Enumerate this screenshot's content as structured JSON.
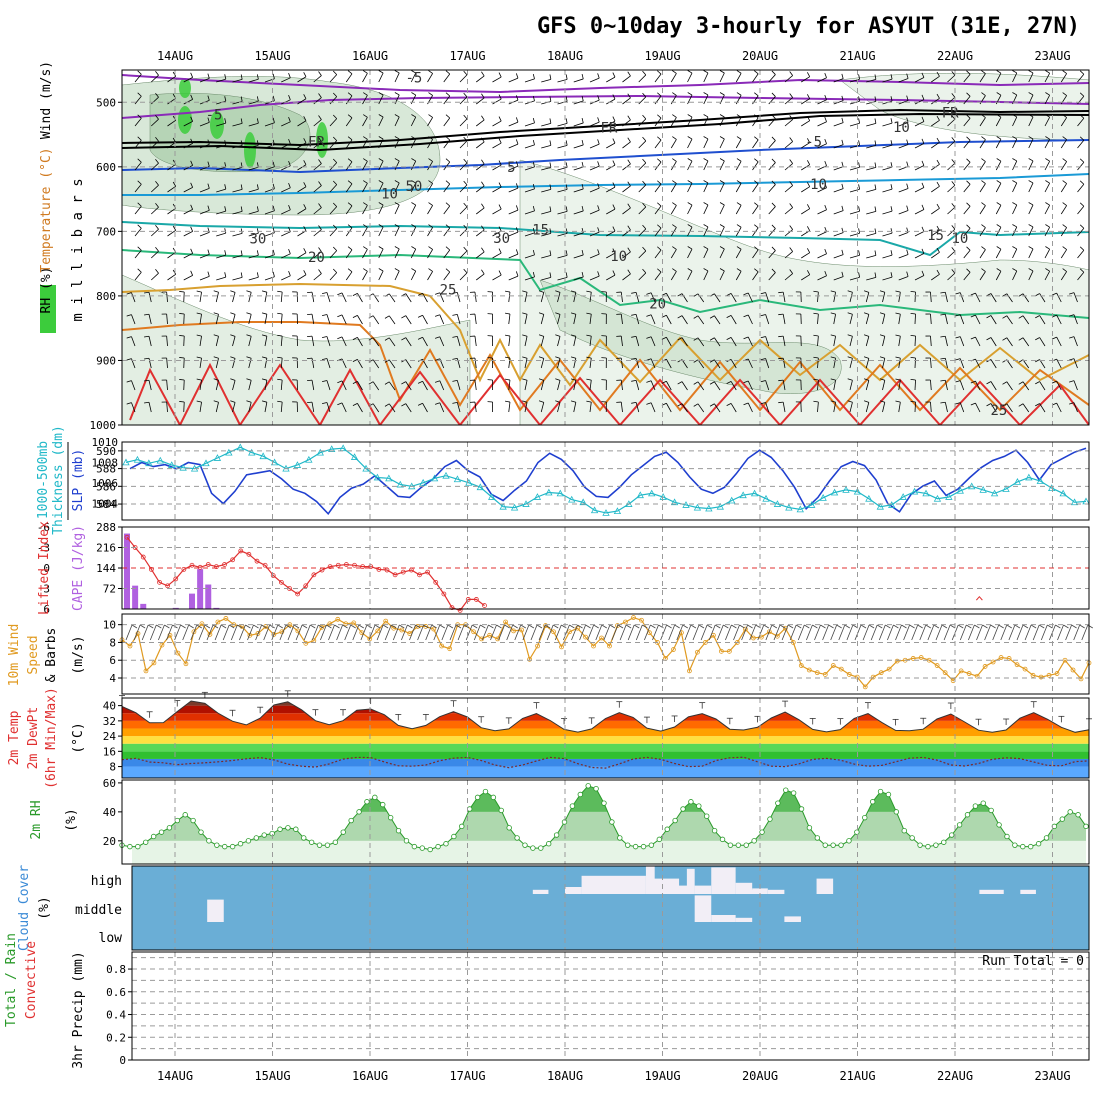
{
  "title": "GFS 0~10day 3-hourly for ASYUT (31E, 27N)",
  "dates": [
    "14AUG",
    "15AUG",
    "16AUG",
    "17AUG",
    "18AUG",
    "19AUG",
    "20AUG",
    "21AUG",
    "22AUG",
    "23AUG"
  ],
  "colors": {
    "frame": "#000000",
    "grid": "#9a9a9a",
    "rh_fill": "#8fbc8f",
    "rh_bright": "#3ccc3c",
    "slp": "#1f3fcf",
    "thick": "#20b8c8",
    "li": "#e03030",
    "cape": "#b060e0",
    "wind10": "#e09a20",
    "tmax_dark": "#6a4a3a",
    "rh2m": "#2a9a2a",
    "cloud_bg": "#6aaed6",
    "cloud_mark": "#f2eef6"
  },
  "chart_data": [
    {
      "panel": "upper-air",
      "type": "contour",
      "ylabel_parts": [
        "RH (%)",
        "Temperature (°C)",
        "Wind (m/s)",
        "m i l l i b a r s"
      ],
      "y_ticks": [
        500,
        600,
        700,
        800,
        900,
        1000
      ],
      "ylim": [
        1000,
        450
      ],
      "contour_labels": [
        {
          "text": "-5",
          "x": 2.45,
          "p": 462
        },
        {
          "text": "-5",
          "x": 0.4,
          "p": 519
        },
        {
          "text": "FR",
          "x": 1.45,
          "p": 561
        },
        {
          "text": "FR",
          "x": 4.45,
          "p": 539
        },
        {
          "text": "FR",
          "x": 7.95,
          "p": 516
        },
        {
          "text": "10",
          "x": 7.45,
          "p": 538
        },
        {
          "text": "-5",
          "x": 6.55,
          "p": 561
        },
        {
          "text": "5",
          "x": 3.45,
          "p": 600
        },
        {
          "text": "10",
          "x": 2.2,
          "p": 641
        },
        {
          "text": "10",
          "x": 6.6,
          "p": 627
        },
        {
          "text": "50",
          "x": 2.45,
          "p": 630
        },
        {
          "text": "15",
          "x": 3.75,
          "p": 697
        },
        {
          "text": "15",
          "x": 7.8,
          "p": 706
        },
        {
          "text": "30",
          "x": 0.85,
          "p": 711
        },
        {
          "text": "30",
          "x": 3.35,
          "p": 710
        },
        {
          "text": "10",
          "x": 8.05,
          "p": 710
        },
        {
          "text": "20",
          "x": 1.45,
          "p": 740
        },
        {
          "text": "10",
          "x": 4.55,
          "p": 738
        },
        {
          "text": "25",
          "x": 2.8,
          "p": 790
        },
        {
          "text": "20",
          "x": 4.95,
          "p": 812
        },
        {
          "text": "25",
          "x": 8.45,
          "p": 977
        }
      ]
    },
    {
      "panel": "thickness-slp",
      "type": "line",
      "ylabel": "1000-500mb Thickness (dm)",
      "ylabel_right": "SLP (mb)",
      "y_ticks": [
        584,
        586,
        588,
        590
      ],
      "y_ticks_right": [
        1004,
        1006,
        1008,
        1010
      ],
      "series": [
        {
          "name": "SLP (mb)",
          "values": [
            1007.4,
            1008.0,
            1007.6,
            1007.8,
            1007.4,
            1008.0,
            1007.8,
            1005.0,
            1004.0,
            1005.2,
            1006.8,
            1007.0,
            1007.2,
            1006.4,
            1005.4,
            1005.0,
            1004.2,
            1003.0,
            1004.6,
            1005.5,
            1005.9,
            1006.7,
            1005.7,
            1004.7,
            1004.6,
            1005.6,
            1006.4,
            1007.6,
            1008.2,
            1007.2,
            1006.6,
            1004.9,
            1004.3,
            1005.3,
            1006.2,
            1008.0,
            1008.9,
            1008.3,
            1007.2,
            1005.6,
            1004.7,
            1004.6,
            1005.6,
            1006.8,
            1007.7,
            1008.6,
            1009.0,
            1008.0,
            1006.6,
            1005.4,
            1005.0,
            1005.6,
            1006.9,
            1008.4,
            1009.2,
            1008.5,
            1007.2,
            1005.6,
            1003.5,
            1004.6,
            1006.2,
            1007.6,
            1008.1,
            1007.7,
            1006.3,
            1004.0,
            1003.2,
            1004.9,
            1005.7,
            1006.2,
            1004.8,
            1005.4,
            1006.5,
            1007.5,
            1008.2,
            1008.6,
            1009.2,
            1008.0,
            1006.3,
            1007.8,
            1008.4,
            1009.0,
            1009.4
          ]
        },
        {
          "name": "Thickness (dm)",
          "values": [
            588.7,
            589.0,
            588.6,
            588.9,
            588.4,
            588.1,
            588.0,
            588.6,
            589.2,
            589.8,
            590.4,
            589.8,
            589.4,
            588.7,
            588.0,
            588.4,
            589.0,
            589.8,
            590.2,
            590.3,
            589.3,
            588.0,
            587.0,
            586.9,
            586.2,
            586.0,
            586.4,
            586.9,
            587.2,
            586.8,
            586.4,
            585.9,
            584.8,
            583.7,
            583.6,
            584.0,
            584.8,
            585.3,
            585.2,
            584.5,
            584.2,
            583.3,
            583.0,
            583.2,
            584.0,
            585.0,
            585.2,
            584.8,
            584.2,
            583.9,
            583.6,
            583.5,
            583.7,
            584.4,
            585.0,
            585.2,
            584.6,
            584.0,
            583.6,
            583.4,
            583.9,
            584.7,
            585.3,
            585.6,
            585.4,
            584.6,
            583.7,
            583.9,
            584.8,
            585.4,
            585.2,
            584.6,
            584.8,
            585.5,
            586.0,
            585.6,
            585.2,
            585.7,
            586.5,
            587.0,
            586.6,
            585.8,
            585.2,
            584.2,
            584.3
          ]
        }
      ]
    },
    {
      "panel": "lifted-cape",
      "type": "bar",
      "ylabel": "Lifted Index",
      "ylabel_right": "CAPE (J/kg)",
      "y_ticks": [
        -6,
        -3,
        0,
        3,
        6
      ],
      "y_ticks_right": [
        72,
        144,
        216,
        288
      ],
      "series": [
        {
          "name": "Lifted Index",
          "values": [
            -4.5,
            -3.0,
            -1.6,
            0.2,
            2.1,
            2.6,
            1.6,
            0.2,
            -0.4,
            -0.1,
            -0.5,
            -0.2,
            -0.5,
            -1.2,
            -2.5,
            -2.0,
            -1.0,
            -0.4,
            1.1,
            2.1,
            3.0,
            3.8,
            2.6,
            1.0,
            0.3,
            -0.2,
            -0.4,
            -0.5,
            -0.4,
            -0.2,
            -0.2,
            0.2,
            0.3,
            1.0,
            0.6,
            0.3,
            1.0,
            0.6,
            2.1,
            3.8,
            5.8,
            6.2,
            4.6,
            4.6,
            5.5
          ]
        },
        {
          "name": "CAPE (J/kg)",
          "values": [
            265,
            82,
            18,
            0,
            0,
            0,
            4,
            0,
            54,
            140,
            86,
            4,
            0,
            0,
            0,
            0,
            0,
            0,
            0,
            0,
            0,
            0,
            0,
            0,
            0,
            0,
            0,
            0,
            0,
            0,
            0,
            0,
            0,
            0,
            0,
            0,
            0,
            0,
            0,
            0,
            0,
            0,
            0,
            0,
            0
          ]
        }
      ]
    },
    {
      "panel": "wind10m",
      "type": "line",
      "ylabel": "10m Wind Speed & Barbs (m/s)",
      "y_ticks": [
        4,
        6,
        8,
        10
      ],
      "series": [
        {
          "name": "10m Wind Speed",
          "values": [
            8.3,
            7.6,
            9.0,
            4.8,
            5.7,
            7.7,
            8.8,
            6.8,
            5.6,
            9.2,
            10.1,
            8.9,
            10.3,
            10.7,
            10.0,
            9.8,
            8.8,
            9.0,
            9.8,
            8.9,
            9.2,
            10.0,
            9.3,
            7.9,
            8.2,
            9.7,
            10.1,
            10.6,
            10.1,
            10.2,
            9.1,
            8.4,
            9.3,
            10.4,
            9.6,
            9.4,
            9.0,
            9.8,
            9.8,
            9.5,
            7.6,
            7.3,
            10.0,
            10.0,
            9.2,
            8.4,
            8.8,
            8.4,
            10.3,
            9.3,
            9.4,
            6.1,
            7.6,
            9.9,
            9.2,
            7.5,
            9.2,
            9.6,
            8.6,
            7.6,
            8.5,
            7.6,
            9.9,
            10.3,
            10.8,
            10.5,
            9.1,
            8.0,
            6.2,
            7.2,
            9.1,
            4.8,
            6.9,
            8.0,
            8.8,
            7.0,
            7.0,
            8.0,
            9.5,
            8.5,
            8.6,
            9.2,
            8.7,
            9.6,
            8.0,
            5.4,
            4.9,
            4.6,
            4.4,
            5.4,
            5.0,
            4.4,
            4.1,
            3.0,
            4.1,
            4.6,
            5.0,
            5.9,
            6.0,
            6.2,
            6.3,
            6.0,
            5.4,
            4.6,
            3.7,
            4.8,
            4.5,
            4.2,
            5.3,
            5.8,
            6.3,
            6.2,
            5.5,
            5.0,
            4.3,
            4.1,
            4.3,
            4.5,
            6.0,
            4.9,
            3.9,
            5.7
          ]
        }
      ]
    },
    {
      "panel": "temp2m",
      "type": "area",
      "ylabel": "2m Temp 2m DewPt (6hr Min/Max) (°C)",
      "y_ticks": [
        8,
        16,
        24,
        32,
        40
      ],
      "series": [
        {
          "name": "2m Temp",
          "values": [
            39.6,
            36.3,
            31.0,
            31.1,
            36.9,
            42.4,
            41.2,
            35.8,
            31.8,
            29.9,
            33.4,
            40.3,
            42.0,
            37.8,
            32.1,
            30.0,
            32.1,
            37.6,
            38.2,
            35.2,
            29.6,
            27.9,
            29.6,
            34.2,
            36.8,
            34.0,
            28.4,
            26.8,
            27.8,
            33.3,
            35.8,
            32.2,
            27.5,
            26.1,
            27.8,
            33.2,
            36.3,
            33.8,
            28.2,
            26.6,
            28.8,
            34.1,
            35.8,
            33.0,
            27.6,
            27.2,
            28.6,
            33.5,
            36.6,
            32.6,
            27.5,
            26.2,
            27.4,
            33.3,
            35.8,
            31.2,
            27.0,
            26.8,
            27.6,
            33.0,
            35.6,
            31.4,
            27.1,
            26.0,
            27.2,
            33.4,
            36.3,
            32.8,
            28.6,
            26.0,
            27.3
          ]
        },
        {
          "name": "2m DewPt",
          "values": [
            11.6,
            12.3,
            10.4,
            10.0,
            9.0,
            9.6,
            10.0,
            10.5,
            11.2,
            12.1,
            12.7,
            11.5,
            9.3,
            8.2,
            7.7,
            9.4,
            11.9,
            12.8,
            12.7,
            10.4,
            8.4,
            8.2,
            8.8,
            11.1,
            12.4,
            12.8,
            11.2,
            8.8,
            7.4,
            8.8,
            10.9,
            12.8,
            12.2,
            9.5,
            7.5,
            7.2,
            9.4,
            12.0,
            12.8,
            11.8,
            9.6,
            8.0,
            8.2,
            11.2,
            12.6,
            12.9,
            10.5,
            8.2,
            8.0,
            9.4,
            11.8,
            12.3,
            11.4,
            9.3,
            8.2,
            8.6,
            10.5,
            12.4,
            12.8,
            11.4,
            8.8,
            8.3,
            9.6,
            11.8,
            12.6,
            12.2,
            10.4,
            8.6,
            8.4,
            10.6,
            11.0
          ]
        }
      ]
    },
    {
      "panel": "rh2m",
      "type": "area",
      "ylabel": "2m RH (%)",
      "y_ticks": [
        20,
        40,
        60
      ],
      "series": [
        {
          "name": "2m RH",
          "values": [
            17,
            16,
            16,
            19,
            23,
            26,
            29,
            34,
            38,
            34,
            26,
            20,
            17,
            16,
            16,
            18,
            20,
            22,
            24,
            25,
            28,
            29,
            28,
            22,
            19,
            17,
            17,
            19,
            26,
            34,
            40,
            47,
            50,
            45,
            36,
            27,
            20,
            16,
            15,
            14,
            16,
            18,
            23,
            30,
            42,
            50,
            54,
            50,
            41,
            29,
            22,
            17,
            15,
            15,
            18,
            24,
            33,
            44,
            52,
            58,
            56,
            46,
            33,
            22,
            17,
            16,
            16,
            17,
            21,
            28,
            34,
            42,
            47,
            44,
            37,
            27,
            21,
            17,
            17,
            17,
            20,
            26,
            35,
            46,
            55,
            53,
            42,
            29,
            22,
            17,
            17,
            17,
            20,
            26,
            36,
            47,
            54,
            52,
            40,
            27,
            22,
            17,
            16,
            17,
            19,
            24,
            31,
            38,
            44,
            46,
            41,
            31,
            23,
            17,
            16,
            16,
            18,
            22,
            30,
            35,
            40,
            38,
            30
          ]
        }
      ]
    },
    {
      "panel": "cloud",
      "type": "heatmap",
      "ylabel": "Cloud Cover (%)",
      "y_ticks": [
        "high",
        "middle",
        "low"
      ],
      "marks": [
        {
          "level": "high",
          "x0": 4.83,
          "x1": 5.17,
          "amt": 0.55
        },
        {
          "level": "high",
          "x0": 5.33,
          "x1": 5.5,
          "amt": 0.3
        },
        {
          "level": "high",
          "x0": 5.0,
          "x1": 5.33,
          "amt": 0.3
        },
        {
          "level": "high",
          "x0": 3.67,
          "x1": 3.83,
          "amt": 0.15
        },
        {
          "level": "high",
          "x0": 4.0,
          "x1": 4.17,
          "amt": 0.25
        },
        {
          "level": "high",
          "x0": 5.83,
          "x1": 6.0,
          "amt": 0.15
        },
        {
          "level": "high",
          "x0": 6.58,
          "x1": 6.75,
          "amt": 0.55
        },
        {
          "level": "high",
          "x0": 4.17,
          "x1": 4.83,
          "amt": 0.65
        },
        {
          "level": "high",
          "x0": 4.83,
          "x1": 4.92,
          "amt": 1.0
        },
        {
          "level": "high",
          "x0": 5.25,
          "x1": 5.33,
          "amt": 0.9
        },
        {
          "level": "high",
          "x0": 5.5,
          "x1": 5.75,
          "amt": 0.95
        },
        {
          "level": "high",
          "x0": 5.75,
          "x1": 5.92,
          "amt": 0.4
        },
        {
          "level": "high",
          "x0": 5.92,
          "x1": 6.08,
          "amt": 0.2
        },
        {
          "level": "high",
          "x0": 6.08,
          "x1": 6.25,
          "amt": 0.15
        },
        {
          "level": "high",
          "x0": 8.25,
          "x1": 8.5,
          "amt": 0.15
        },
        {
          "level": "high",
          "x0": 8.67,
          "x1": 8.83,
          "amt": 0.15
        },
        {
          "level": "middle",
          "x0": 0.33,
          "x1": 0.5,
          "amt": 0.8
        },
        {
          "level": "middle",
          "x0": 5.33,
          "x1": 5.5,
          "amt": 0.95
        },
        {
          "level": "middle",
          "x0": 5.5,
          "x1": 5.75,
          "amt": 0.25
        },
        {
          "level": "middle",
          "x0": 5.75,
          "x1": 5.92,
          "amt": 0.15
        },
        {
          "level": "middle",
          "x0": 6.25,
          "x1": 6.42,
          "amt": 0.2
        }
      ]
    },
    {
      "panel": "precip",
      "type": "bar",
      "ylabel": "Total / Rain Convective 3hr Precip (mm)",
      "annotation": "Run Total = 0",
      "y_ticks": [
        0,
        0.2,
        0.4,
        0.6,
        0.8
      ],
      "ylim": [
        0,
        0.95
      ],
      "series": [
        {
          "name": "Total / Rain",
          "values": []
        },
        {
          "name": "Convective",
          "values": []
        }
      ]
    }
  ]
}
